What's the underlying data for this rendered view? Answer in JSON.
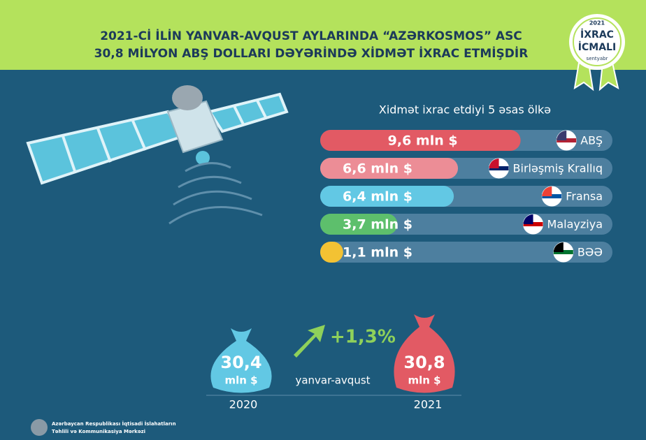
{
  "header": {
    "line1": "2021-Cİ İLİN YANVAR-AVQUST AYLARINDA “AZƏRKOSMOS” ASC",
    "line2": "30,8 MİLYON ABŞ DOLLARI DƏYƏRİNDƏ XİDMƏT İXRAC ETMİŞDİR"
  },
  "badge": {
    "year": "2021",
    "line1": "İXRAC",
    "line2": "İCMALI",
    "month": "sentyabr"
  },
  "chart_data": {
    "type": "bar",
    "orientation": "horizontal",
    "title": "Xidmət ixrac etdiyi 5 əsas ölkə",
    "categories": [
      "ABŞ",
      "Birləşmiş Krallıq",
      "Fransa",
      "Malayziya",
      "BƏƏ"
    ],
    "values": [
      9.6,
      6.6,
      6.4,
      3.7,
      1.1
    ],
    "value_labels": [
      "9,6 mln $",
      "6,6 mln $",
      "6,4 mln $",
      "3,7 mln $",
      "1,1 mln $"
    ],
    "colors": [
      "#e25a64",
      "#ec8d96",
      "#62c8e4",
      "#5dbf6c",
      "#f3c233"
    ],
    "xlim": [
      0,
      14
    ]
  },
  "comparison": {
    "previous": {
      "amount": "30,4",
      "unit": "mln $",
      "year": "2020"
    },
    "current": {
      "amount": "30,8",
      "unit": "mln $",
      "year": "2021"
    },
    "change": "+1,3%",
    "period": "yanvar-avqust"
  },
  "footer": {
    "line1": "Azərbaycan Respublikası İqtisadi İslahatların",
    "line2": "Təhlili və Kommunikasiya Mərkəzi"
  }
}
